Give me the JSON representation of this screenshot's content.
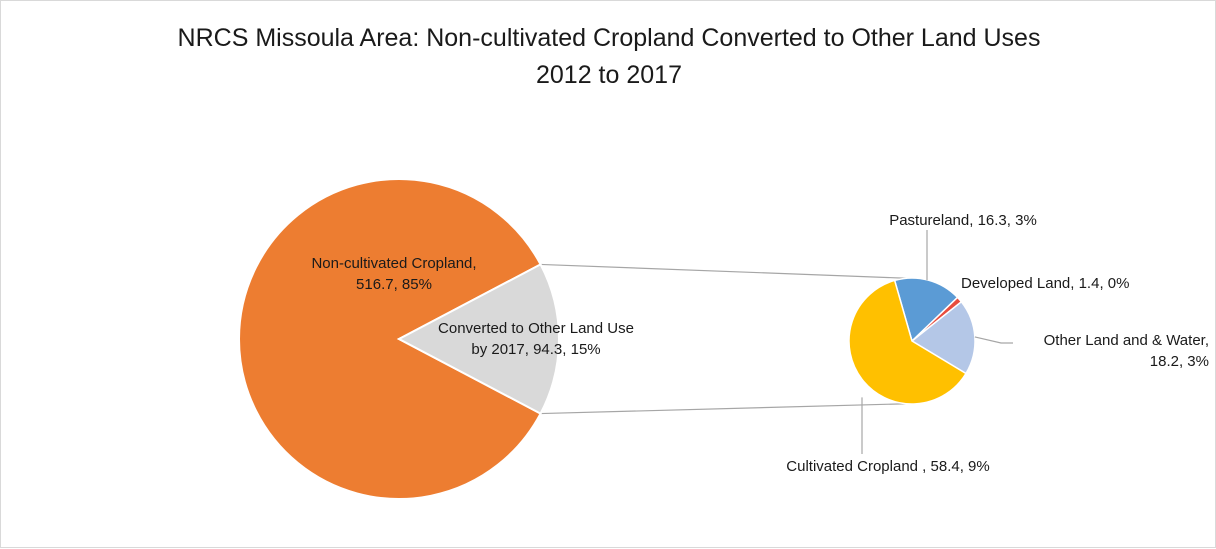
{
  "chart_data": {
    "type": "pie",
    "title_line1": "NRCS Missoula Area: Non-cultivated Cropland Converted to Other Land Uses",
    "title_line2": "2012 to 2017",
    "main_pie": {
      "slices": [
        {
          "name": "Non-cultivated Cropland",
          "value": 516.7,
          "percent": "85%",
          "color": "#ed7d31",
          "label_lines": [
            "Non-cultivated Cropland,",
            "516.7, 85%"
          ]
        },
        {
          "name": "Converted to Other Land Use by 2017",
          "value": 94.3,
          "percent": "15%",
          "color": "#d9d9d9",
          "label_lines": [
            "Converted to Other Land Use",
            "by 2017, 94.3, 15%"
          ]
        }
      ]
    },
    "secondary_pie": {
      "slices": [
        {
          "name": "Pastureland",
          "value": 16.3,
          "percent": "3%",
          "color": "#5b9bd5",
          "label_lines": [
            "Pastureland, 16.3, 3%"
          ]
        },
        {
          "name": "Developed Land",
          "value": 1.4,
          "percent": "0%",
          "color": "#e84c3d",
          "label_lines": [
            "Developed Land, 1.4, 0%"
          ]
        },
        {
          "name": "Other Land and & Water",
          "value": 18.2,
          "percent": "3%",
          "color": "#b4c7e7",
          "label_lines": [
            "Other Land and & Water,",
            "18.2, 3%"
          ]
        },
        {
          "name": "Cultivated Cropland",
          "value": 58.4,
          "percent": "9%",
          "color": "#ffc000",
          "label_lines": [
            "Cultivated Cropland , 58.4, 9%"
          ]
        }
      ]
    }
  }
}
